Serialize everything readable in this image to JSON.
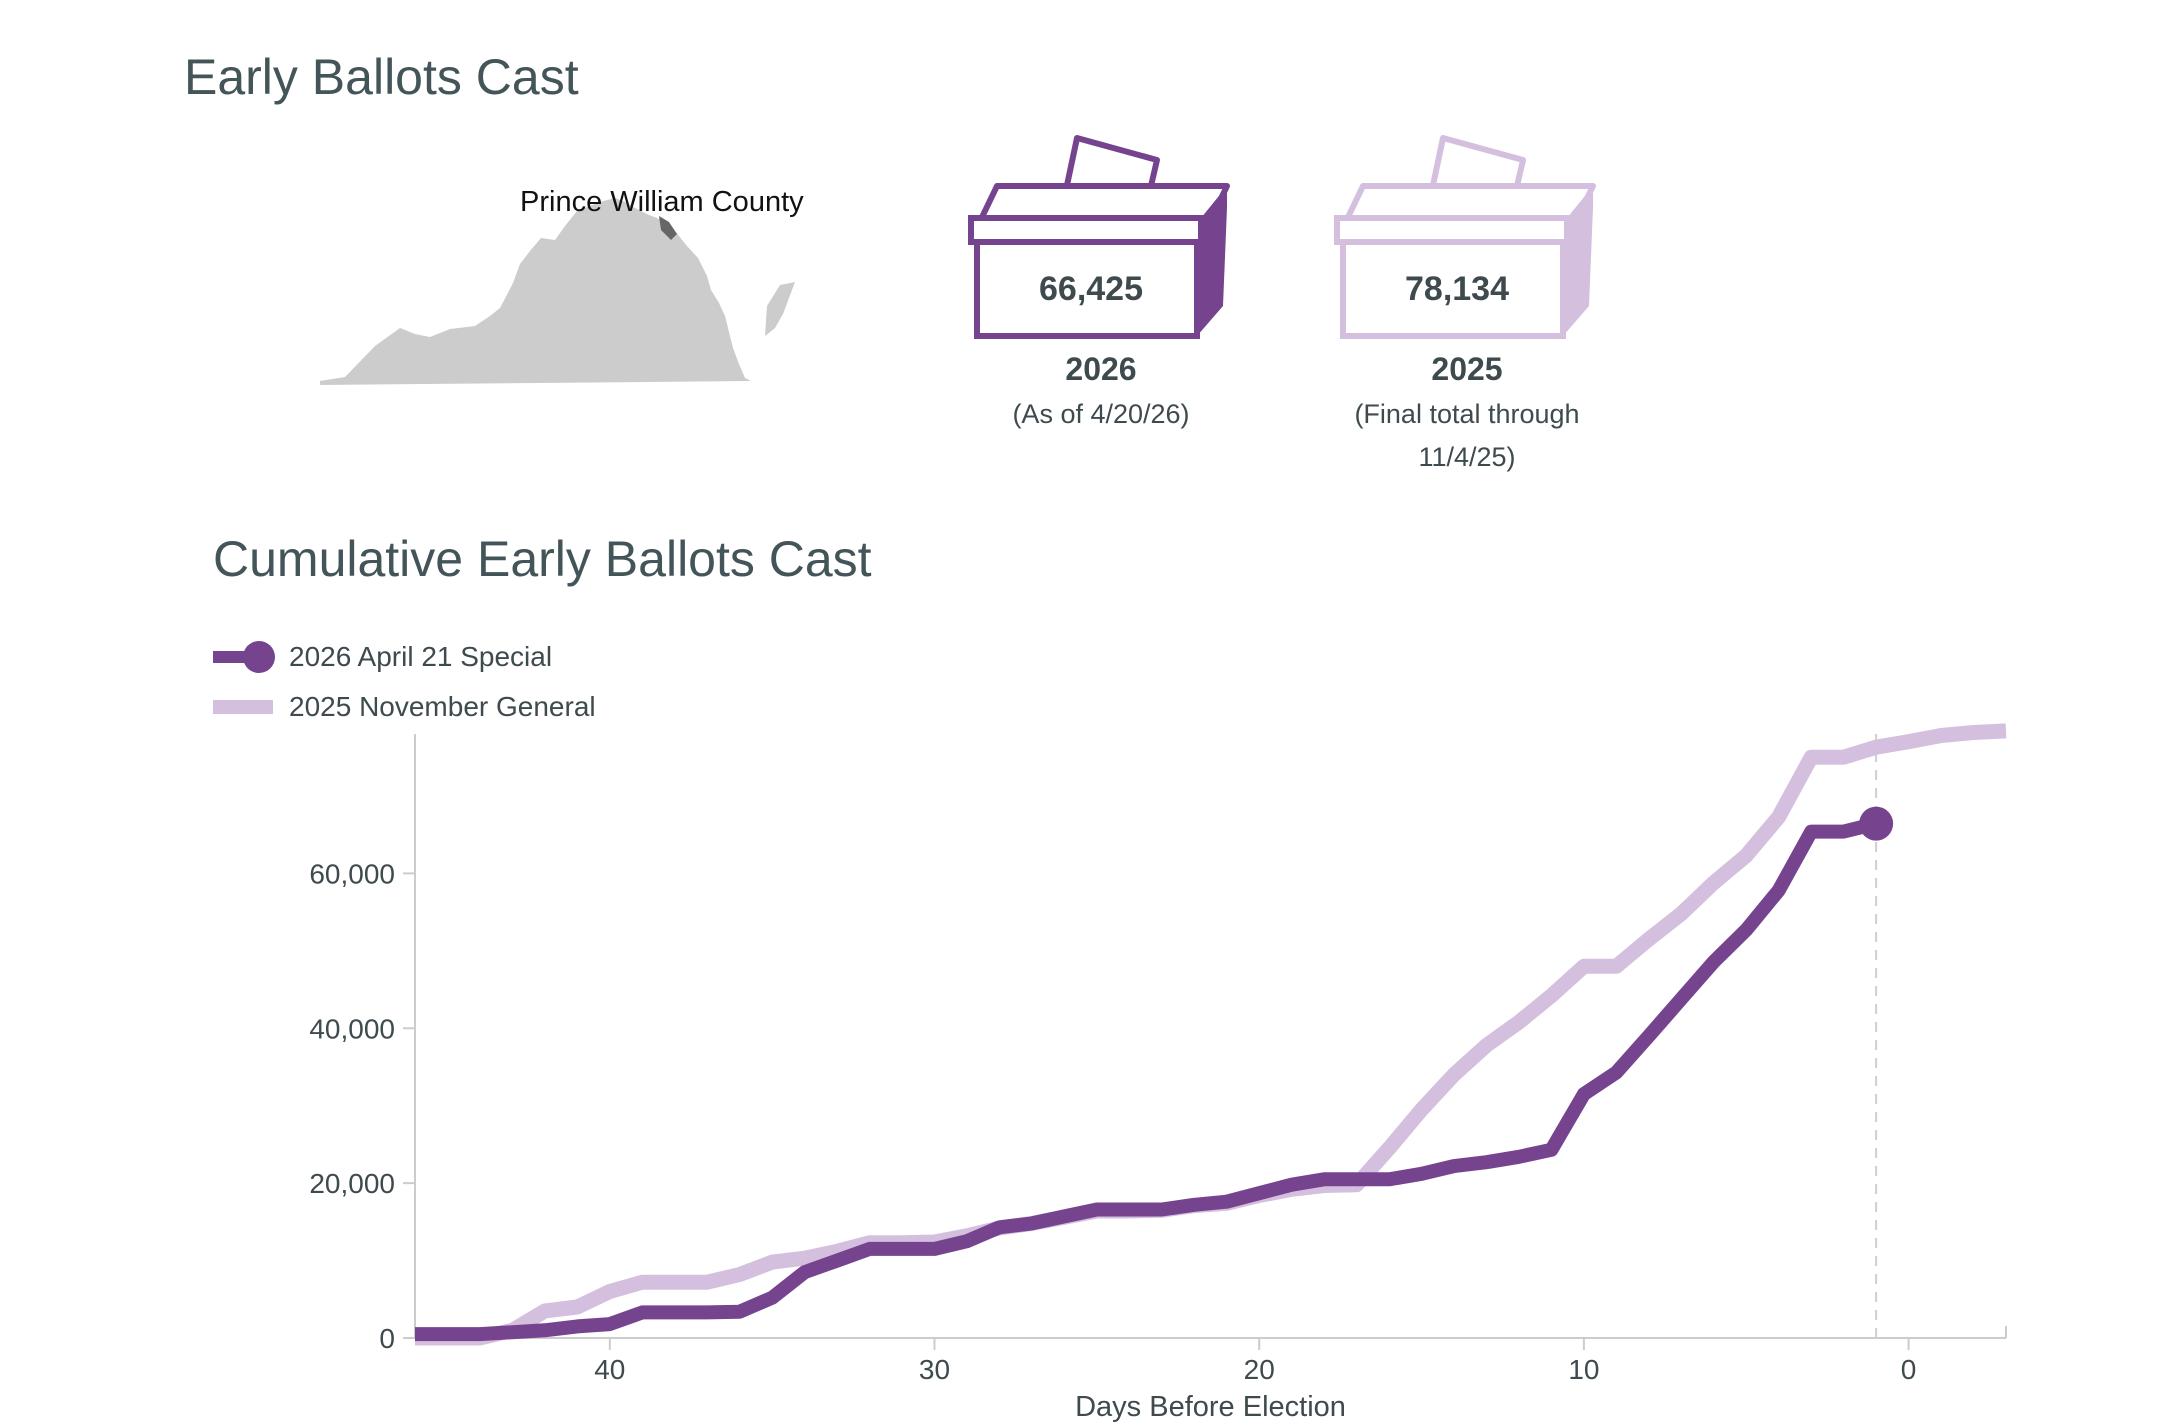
{
  "colors": {
    "series_2026": "#76448f",
    "series_2025": "#d4c0de",
    "map_fill": "#cccccc",
    "map_highlight": "#666666",
    "axis": "#cccccc",
    "text": "#3e4a4e"
  },
  "summary": {
    "title": "Early Ballots Cast",
    "map_label": "Prince William County",
    "boxes": [
      {
        "value": "66,425",
        "year": "2026",
        "note": "(As of 4/20/26)"
      },
      {
        "value": "78,134",
        "year": "2025",
        "note_line1": "(Final total through",
        "note_line2": "11/4/25)"
      }
    ]
  },
  "chart_title": "Cumulative Early Ballots Cast",
  "legend": [
    {
      "label": "2026 April 21 Special",
      "icon": "line-dot-icon"
    },
    {
      "label": "2025 November General",
      "icon": "line-icon"
    }
  ],
  "chart_data": {
    "type": "line",
    "title": "Cumulative Early Ballots Cast",
    "xlabel": "Days Before Election",
    "ylabel": "",
    "xlim": [
      46,
      -3
    ],
    "ylim": [
      0,
      78000
    ],
    "x_ticks": [
      40,
      30,
      20,
      10,
      0
    ],
    "x_tick_labels": [
      "40",
      "30",
      "20",
      "10",
      "0"
    ],
    "y_ticks": [
      0,
      20000,
      40000,
      60000
    ],
    "y_tick_labels": [
      "0",
      "20,000",
      "40,000",
      "60,000"
    ],
    "reference_line_x": 1,
    "series": [
      {
        "name": "2026 April 21 Special",
        "points": [
          [
            46,
            500
          ],
          [
            44,
            500
          ],
          [
            42,
            1000
          ],
          [
            41,
            1500
          ],
          [
            40,
            1800
          ],
          [
            39,
            3300
          ],
          [
            38,
            3300
          ],
          [
            37,
            3300
          ],
          [
            36,
            3400
          ],
          [
            35,
            5200
          ],
          [
            34,
            8500
          ],
          [
            33,
            10000
          ],
          [
            32,
            11500
          ],
          [
            31,
            11500
          ],
          [
            30,
            11500
          ],
          [
            29,
            12500
          ],
          [
            28,
            14300
          ],
          [
            27,
            14800
          ],
          [
            26,
            15700
          ],
          [
            25,
            16600
          ],
          [
            24,
            16600
          ],
          [
            23,
            16600
          ],
          [
            22,
            17200
          ],
          [
            21,
            17600
          ],
          [
            20,
            18700
          ],
          [
            19,
            19800
          ],
          [
            18,
            20500
          ],
          [
            17,
            20500
          ],
          [
            16,
            20500
          ],
          [
            15,
            21200
          ],
          [
            14,
            22200
          ],
          [
            13,
            22700
          ],
          [
            12,
            23400
          ],
          [
            11,
            24300
          ],
          [
            10,
            31500
          ],
          [
            9,
            34300
          ],
          [
            8,
            39000
          ],
          [
            7,
            43800
          ],
          [
            6,
            48600
          ],
          [
            5,
            52700
          ],
          [
            4,
            57800
          ],
          [
            3,
            65400
          ],
          [
            2,
            65400
          ],
          [
            1,
            66425
          ]
        ],
        "end_marker": true
      },
      {
        "name": "2025 November General",
        "points": [
          [
            46,
            0
          ],
          [
            44,
            0
          ],
          [
            43,
            1000
          ],
          [
            42,
            3500
          ],
          [
            41,
            4000
          ],
          [
            40,
            6000
          ],
          [
            39,
            7200
          ],
          [
            38,
            7200
          ],
          [
            37,
            7200
          ],
          [
            36,
            8200
          ],
          [
            35,
            9800
          ],
          [
            34,
            10300
          ],
          [
            33,
            11200
          ],
          [
            32,
            12300
          ],
          [
            31,
            12300
          ],
          [
            30,
            12400
          ],
          [
            29,
            13200
          ],
          [
            28,
            14200
          ],
          [
            27,
            14800
          ],
          [
            26,
            15600
          ],
          [
            25,
            16400
          ],
          [
            24,
            16400
          ],
          [
            23,
            16500
          ],
          [
            22,
            17100
          ],
          [
            21,
            17400
          ],
          [
            20,
            18400
          ],
          [
            19,
            19200
          ],
          [
            18,
            19700
          ],
          [
            17,
            19800
          ],
          [
            16,
            24500
          ],
          [
            15,
            29500
          ],
          [
            14,
            34000
          ],
          [
            13,
            37800
          ],
          [
            12,
            40800
          ],
          [
            11,
            44200
          ],
          [
            10,
            48000
          ],
          [
            9,
            48000
          ],
          [
            8,
            51500
          ],
          [
            7,
            54800
          ],
          [
            6,
            58800
          ],
          [
            5,
            62300
          ],
          [
            4,
            67300
          ],
          [
            3,
            75000
          ],
          [
            2,
            75000
          ],
          [
            1,
            76300
          ],
          [
            0,
            77000
          ],
          [
            -1,
            77800
          ],
          [
            -2,
            78200
          ],
          [
            -3,
            78400
          ]
        ],
        "end_marker": false
      }
    ]
  }
}
